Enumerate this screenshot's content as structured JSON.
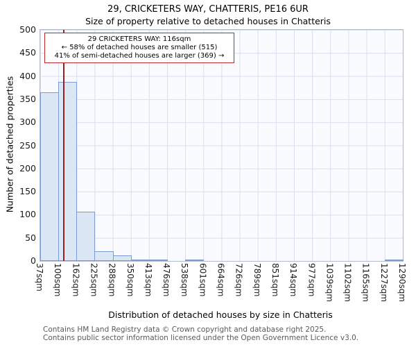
{
  "title": "29, CRICKETERS WAY, CHATTERIS, PE16 6UR",
  "subtitle": "Size of property relative to detached houses in Chatteris",
  "annotation": {
    "line1": "29 CRICKETERS WAY: 116sqm",
    "line2": "← 58% of detached houses are smaller (515)",
    "line3": "41% of semi-detached houses are larger (369) →"
  },
  "footer": {
    "line1": "Contains HM Land Registry data © Crown copyright and database right 2025.",
    "line2": "Contains public sector information licensed under the Open Government Licence v3.0."
  },
  "chart_data": {
    "type": "bar",
    "title": "29, CRICKETERS WAY, CHATTERIS, PE16 6UR",
    "subtitle": "Size of property relative to detached houses in Chatteris",
    "xlabel": "Distribution of detached houses by size in Chatteris",
    "ylabel": "Number of detached properties",
    "categories": [
      "37sqm",
      "100sqm",
      "162sqm",
      "225sqm",
      "288sqm",
      "350sqm",
      "413sqm",
      "476sqm",
      "538sqm",
      "601sqm",
      "664sqm",
      "726sqm",
      "789sqm",
      "851sqm",
      "914sqm",
      "977sqm",
      "1039sqm",
      "1102sqm",
      "1165sqm",
      "1227sqm",
      "1290sqm"
    ],
    "values": [
      365,
      387,
      106,
      21,
      12,
      3,
      2,
      0,
      2,
      0,
      0,
      0,
      0,
      0,
      0,
      0,
      0,
      0,
      0,
      2
    ],
    "ylim": [
      0,
      500
    ],
    "ytick_step": 50,
    "grid": true,
    "grid_color": "#d8def0",
    "bar_fill": "#dce7f6",
    "bar_border": "#7b9bd2",
    "marker": {
      "value": 116,
      "bin_index": 1,
      "bin_start": 100,
      "bin_end": 162,
      "color": "#9c1f1f"
    }
  }
}
